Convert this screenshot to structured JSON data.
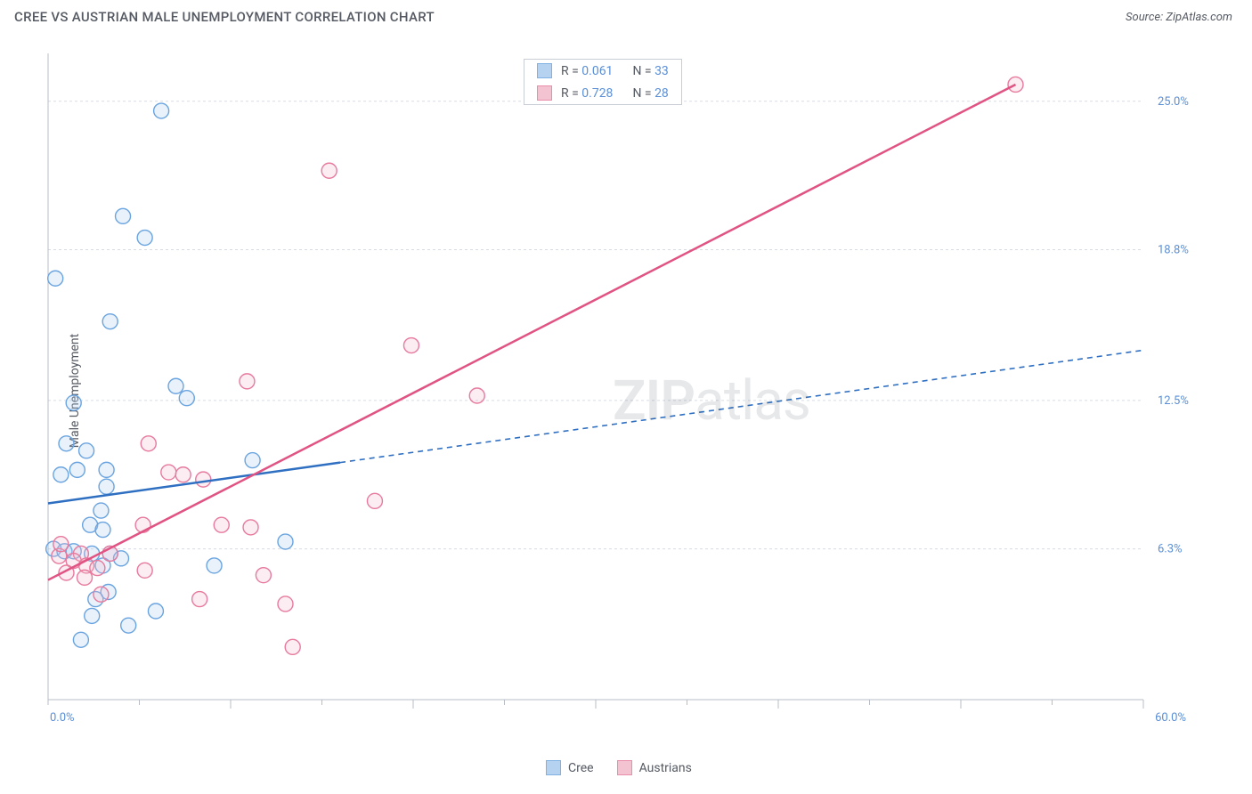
{
  "title": "CREE VS AUSTRIAN MALE UNEMPLOYMENT CORRELATION CHART",
  "source": "Source: ZipAtlas.com",
  "ylabel": "Male Unemployment",
  "watermark_a": "ZIP",
  "watermark_b": "atlas",
  "chart": {
    "type": "scatter",
    "xlim": [
      0,
      60
    ],
    "ylim": [
      0,
      27
    ],
    "x_ticks_minor_step": 5,
    "y_gridlines": [
      6.3,
      12.5,
      18.8,
      25.0
    ],
    "y_tick_labels": [
      "6.3%",
      "12.5%",
      "18.8%",
      "25.0%"
    ],
    "x_min_label": "0.0%",
    "x_max_label": "60.0%",
    "grid_color": "#d8dce2",
    "axis_color": "#b7bcc5",
    "background": "#ffffff",
    "marker_radius": 8.5,
    "marker_stroke_width": 1.4,
    "marker_fill_opacity": 0.25,
    "series": [
      {
        "name": "Cree",
        "color_stroke": "#6aa4e0",
        "color_fill": "#a9cbee",
        "line_color": "#2e6fc2",
        "line_solid_max_x": 16,
        "line_dash": "6,5",
        "R": "0.061",
        "N": "33",
        "trend": {
          "x1": 0,
          "y1": 8.2,
          "x2": 60,
          "y2": 14.6
        },
        "points": [
          [
            6.2,
            24.6
          ],
          [
            4.1,
            20.2
          ],
          [
            5.3,
            19.3
          ],
          [
            0.4,
            17.6
          ],
          [
            3.4,
            15.8
          ],
          [
            1.4,
            12.4
          ],
          [
            7.6,
            12.6
          ],
          [
            7.0,
            13.1
          ],
          [
            1.0,
            10.7
          ],
          [
            2.1,
            10.4
          ],
          [
            1.6,
            9.6
          ],
          [
            0.7,
            9.4
          ],
          [
            3.2,
            8.9
          ],
          [
            3.2,
            9.6
          ],
          [
            11.2,
            10.0
          ],
          [
            2.9,
            7.9
          ],
          [
            2.3,
            7.3
          ],
          [
            3.0,
            7.1
          ],
          [
            0.3,
            6.3
          ],
          [
            0.9,
            6.2
          ],
          [
            1.4,
            6.2
          ],
          [
            2.4,
            6.1
          ],
          [
            3.4,
            6.1
          ],
          [
            4.0,
            5.9
          ],
          [
            3.0,
            5.6
          ],
          [
            9.1,
            5.6
          ],
          [
            13.0,
            6.6
          ],
          [
            3.3,
            4.5
          ],
          [
            5.9,
            3.7
          ],
          [
            4.4,
            3.1
          ],
          [
            2.4,
            3.5
          ],
          [
            1.8,
            2.5
          ],
          [
            2.6,
            4.2
          ]
        ]
      },
      {
        "name": "Austrians",
        "color_stroke": "#e77a9d",
        "color_fill": "#f3b9cb",
        "line_color": "#e15382",
        "line_solid_max_x": 60,
        "line_dash": null,
        "R": "0.728",
        "N": "28",
        "trend": {
          "x1": 0,
          "y1": 5.0,
          "x2": 53,
          "y2": 25.7
        },
        "points": [
          [
            53.0,
            25.7
          ],
          [
            15.4,
            22.1
          ],
          [
            19.9,
            14.8
          ],
          [
            23.5,
            12.7
          ],
          [
            10.9,
            13.3
          ],
          [
            5.5,
            10.7
          ],
          [
            6.6,
            9.5
          ],
          [
            7.4,
            9.4
          ],
          [
            8.5,
            9.2
          ],
          [
            17.9,
            8.3
          ],
          [
            5.2,
            7.3
          ],
          [
            9.5,
            7.3
          ],
          [
            11.1,
            7.2
          ],
          [
            3.4,
            6.1
          ],
          [
            1.8,
            6.1
          ],
          [
            0.6,
            6.0
          ],
          [
            1.4,
            5.8
          ],
          [
            2.1,
            5.6
          ],
          [
            2.7,
            5.5
          ],
          [
            5.3,
            5.4
          ],
          [
            11.8,
            5.2
          ],
          [
            2.0,
            5.1
          ],
          [
            2.9,
            4.4
          ],
          [
            8.3,
            4.2
          ],
          [
            13.0,
            4.0
          ],
          [
            13.4,
            2.2
          ],
          [
            0.7,
            6.5
          ],
          [
            1.0,
            5.3
          ]
        ]
      }
    ],
    "legend_bottom": [
      "Cree",
      "Austrians"
    ]
  }
}
